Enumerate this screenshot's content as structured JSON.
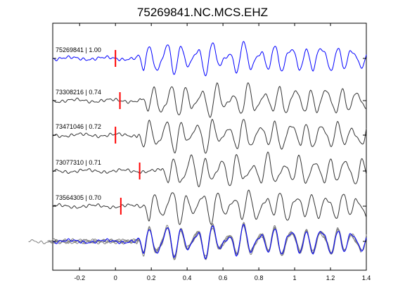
{
  "chart_data": {
    "type": "line",
    "title": "75269841.NC.MCS.EHZ",
    "xlabel": "",
    "ylabel": "",
    "xlim": [
      -0.35,
      1.4
    ],
    "xticks": [
      -0.2,
      0,
      0.2,
      0.4,
      0.6,
      0.8,
      1,
      1.2,
      1.4
    ],
    "xtick_labels": [
      "-0.2",
      "0",
      "0.2",
      "0.4",
      "0.6",
      "0.8",
      "1",
      "1.2",
      "1.4"
    ],
    "grid": false,
    "colors": {
      "reference": "#0000ff",
      "trace": "#333333",
      "stack": "#808080",
      "pick": "#ff0000"
    },
    "traces": [
      {
        "label": "75269841 | 1.00",
        "pick": 0.0,
        "color": "#0000ff",
        "amplitude": 1.0,
        "seed": 1
      },
      {
        "label": "73308216 | 0.74",
        "pick": 0.025,
        "color": "#333333",
        "amplitude": 1.0,
        "seed": 2
      },
      {
        "label": "73471046 | 0.72",
        "pick": 0.0,
        "color": "#333333",
        "amplitude": 1.0,
        "seed": 3
      },
      {
        "label": "73077310 | 0.71",
        "pick": 0.135,
        "color": "#333333",
        "amplitude": 1.0,
        "seed": 4
      },
      {
        "label": "73564305 | 0.70",
        "pick": 0.03,
        "color": "#333333",
        "amplitude": 1.0,
        "seed": 5
      }
    ]
  }
}
